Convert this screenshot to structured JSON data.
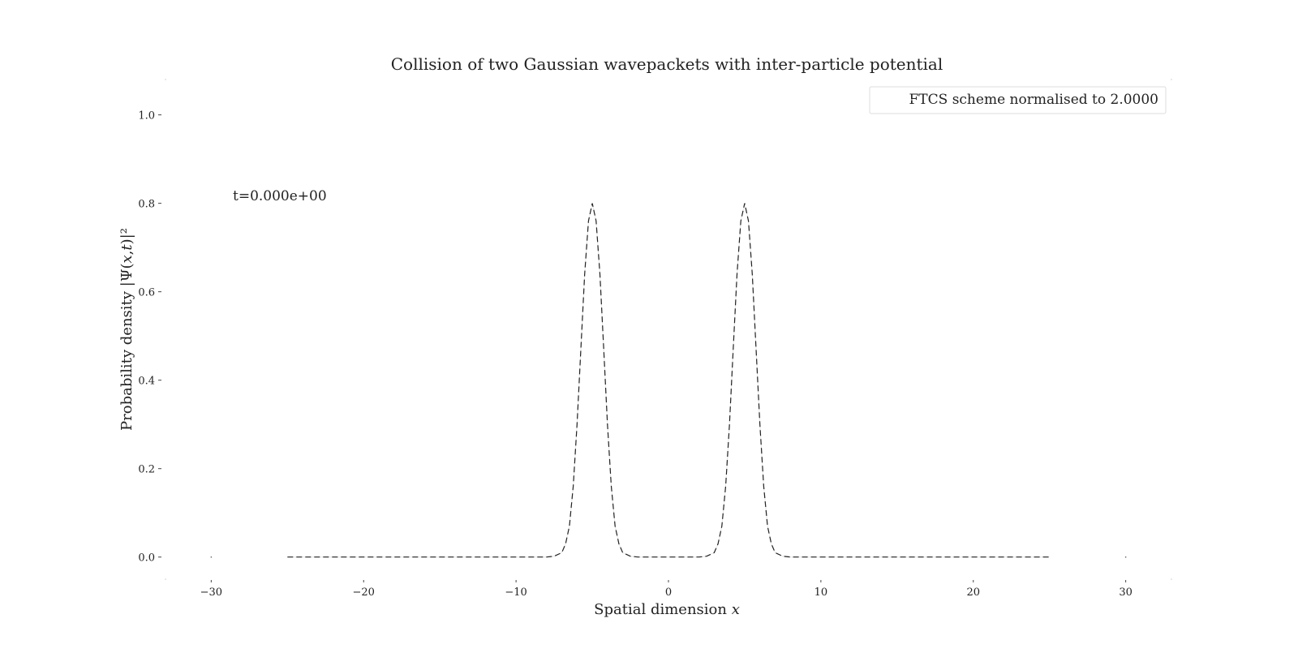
{
  "chart_data": {
    "type": "line",
    "title": "Collision of two Gaussian wavepackets with inter-particle potential",
    "xlabel": "Spatial dimension x",
    "ylabel": "Probability density |Ψ(x,t)|²",
    "xlim": [
      -33,
      33
    ],
    "ylim": [
      -0.05,
      1.08
    ],
    "x_ticks": [
      -30,
      -20,
      -10,
      0,
      10,
      20,
      30
    ],
    "x_tick_labels": [
      "−30",
      "−20",
      "−10",
      "0",
      "10",
      "20",
      "30"
    ],
    "y_ticks": [
      0.0,
      0.2,
      0.4,
      0.6,
      0.8,
      1.0
    ],
    "y_tick_labels": [
      "0.0",
      "0.2",
      "0.4",
      "0.6",
      "0.8",
      "1.0"
    ],
    "grid": false,
    "legend_position": "top-right",
    "annotation": "t=0.000e+00",
    "series": [
      {
        "name": "FTCS scheme normalised to 2.0000",
        "style": "dashed",
        "color": "#222222",
        "x": [
          -25,
          -8,
          -7.5,
          -7,
          -6.75,
          -6.5,
          -6.25,
          -6,
          -5.75,
          -5.5,
          -5.25,
          -5,
          -4.75,
          -4.5,
          -4.25,
          -4,
          -3.75,
          -3.5,
          -3.25,
          -3,
          -2.5,
          -2,
          0,
          2,
          2.5,
          3,
          3.25,
          3.5,
          3.75,
          4,
          4.25,
          4.5,
          4.75,
          5,
          5.25,
          5.5,
          5.75,
          6,
          6.25,
          6.5,
          6.75,
          7,
          7.5,
          8,
          25
        ],
        "y": [
          0,
          0,
          0.002,
          0.01,
          0.03,
          0.07,
          0.16,
          0.3,
          0.47,
          0.64,
          0.76,
          0.8,
          0.76,
          0.64,
          0.47,
          0.3,
          0.16,
          0.07,
          0.03,
          0.01,
          0.002,
          0,
          0,
          0,
          0.002,
          0.01,
          0.03,
          0.07,
          0.16,
          0.3,
          0.47,
          0.64,
          0.76,
          0.8,
          0.76,
          0.64,
          0.47,
          0.3,
          0.16,
          0.07,
          0.03,
          0.01,
          0.002,
          0,
          0
        ]
      }
    ]
  }
}
